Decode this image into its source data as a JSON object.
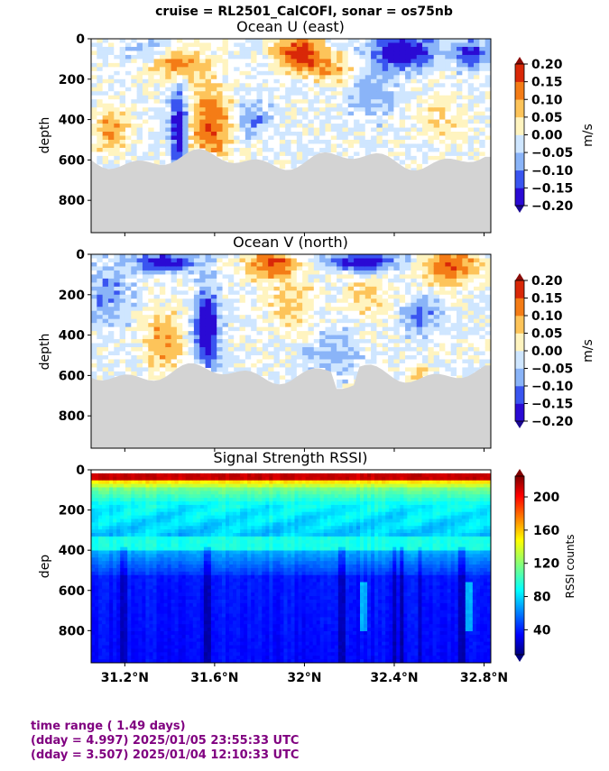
{
  "suptitle": "cruise = RL2501_CalCOFI,  sonar = os75nb",
  "colors": {
    "accent_text": "#800080",
    "bathymetry": "#d3d3d3",
    "div_palette": [
      "#2a0ad4",
      "#3a55f0",
      "#8ab4f8",
      "#cfe6ff",
      "#ffffff",
      "#fff4c0",
      "#fdc45a",
      "#f47c16",
      "#d92808"
    ],
    "jet_palette": [
      "#00007f",
      "#0000ff",
      "#007fff",
      "#00ffff",
      "#7fff7f",
      "#ffff00",
      "#ff7f00",
      "#ff0000",
      "#7f0000"
    ]
  },
  "footer": {
    "line1": "time range ( 1.49 days)",
    "line2": "(dday = 4.997) 2025/01/05 23:55:33 UTC",
    "line3": "(dday = 3.507) 2025/01/04 12:10:33 UTC"
  },
  "chart_data": [
    {
      "type": "heatmap",
      "title": "Ocean U (east)",
      "ylabel": "depth",
      "ylim": [
        960,
        0
      ],
      "yticks": [
        "0",
        "200",
        "400",
        "600",
        "800"
      ],
      "xlim": [
        31.05,
        32.83
      ],
      "colorbar": {
        "label": "m/s",
        "range": [
          -0.2,
          0.2
        ],
        "ticks": [
          "0.20",
          "0.15",
          "0.10",
          "0.05",
          "0.00",
          "−0.05",
          "−0.10",
          "−0.15",
          "−0.20"
        ]
      }
    },
    {
      "type": "heatmap",
      "title": "Ocean V (north)",
      "ylabel": "depth",
      "ylim": [
        960,
        0
      ],
      "yticks": [
        "0",
        "200",
        "400",
        "600",
        "800"
      ],
      "xlim": [
        31.05,
        32.83
      ],
      "colorbar": {
        "label": "m/s",
        "range": [
          -0.2,
          0.2
        ],
        "ticks": [
          "0.20",
          "0.15",
          "0.10",
          "0.05",
          "0.00",
          "−0.05",
          "−0.10",
          "−0.15",
          "−0.20"
        ]
      }
    },
    {
      "type": "heatmap",
      "title": "Signal Strength RSSI)",
      "ylabel": "dep",
      "ylim": [
        960,
        0
      ],
      "yticks": [
        "0",
        "200",
        "400",
        "600",
        "800"
      ],
      "xlim": [
        31.05,
        32.83
      ],
      "xticks": [
        31.2,
        31.6,
        32.0,
        32.4,
        32.8
      ],
      "xticklabels": [
        "31.2°N",
        "31.6°N",
        "32°N",
        "32.4°N",
        "32.8°N"
      ],
      "colorbar": {
        "label": "RSSI counts",
        "range": [
          10,
          225
        ],
        "ticks": [
          "200",
          "160",
          "120",
          "80",
          "40"
        ]
      }
    }
  ]
}
